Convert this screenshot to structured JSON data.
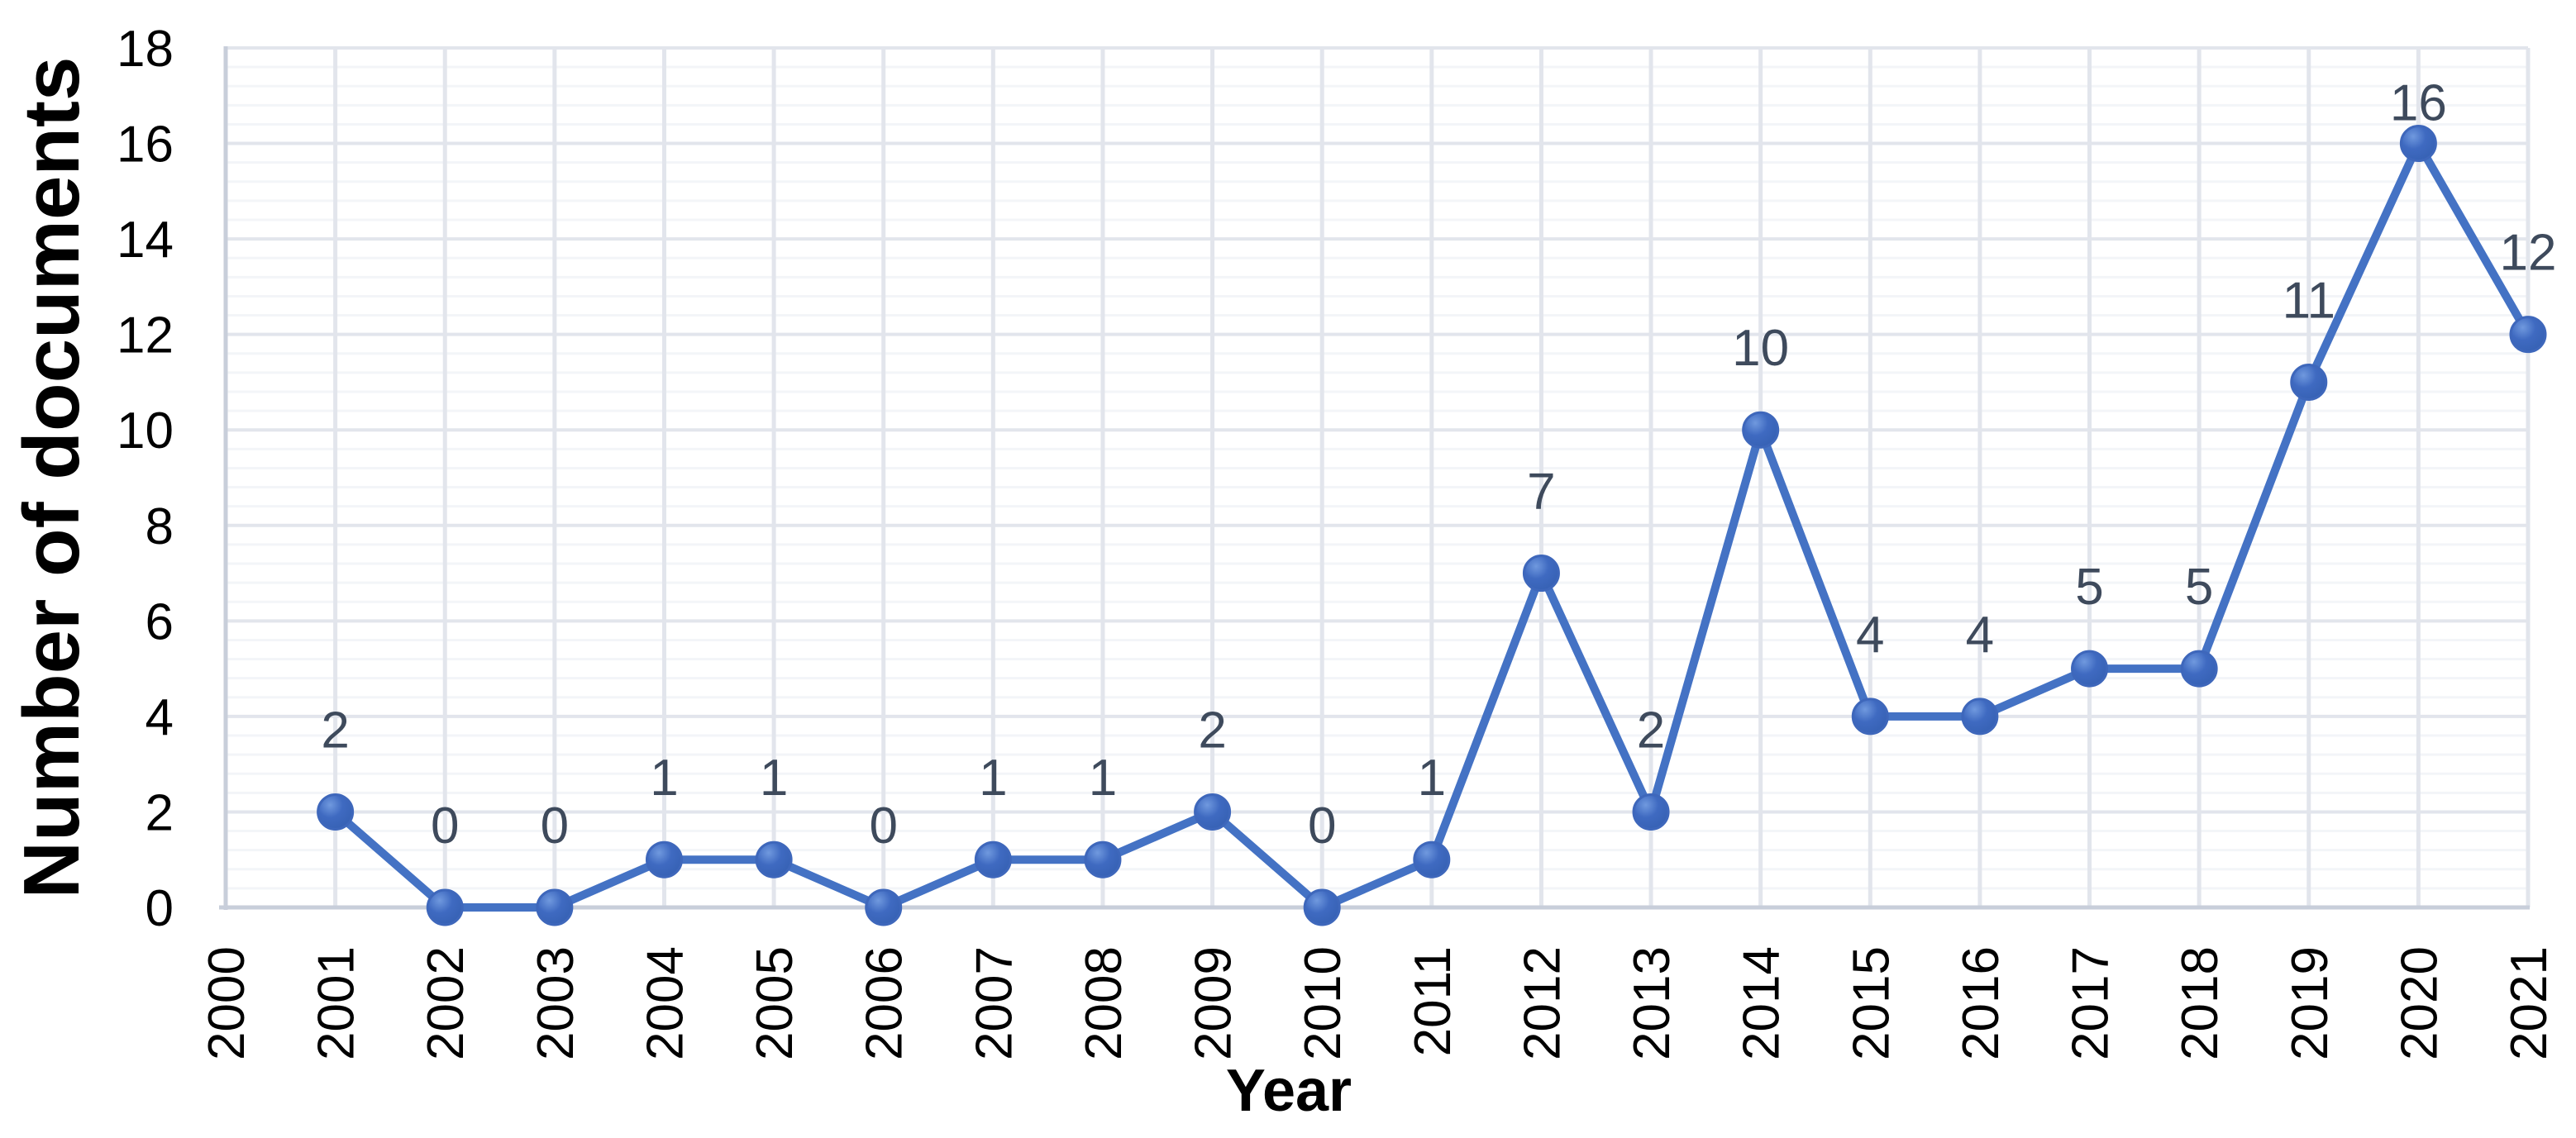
{
  "chart_data": {
    "type": "line",
    "title": "",
    "xlabel": "Year",
    "ylabel": "Number of documents",
    "categories": [
      "2000",
      "2001",
      "2002",
      "2003",
      "2004",
      "2005",
      "2006",
      "2007",
      "2008",
      "2009",
      "2010",
      "2011",
      "2012",
      "2013",
      "2014",
      "2015",
      "2016",
      "2017",
      "2018",
      "2019",
      "2020",
      "2021"
    ],
    "series": [
      {
        "name": "Number of documents",
        "x": [
          "2001",
          "2002",
          "2003",
          "2004",
          "2005",
          "2006",
          "2007",
          "2008",
          "2009",
          "2010",
          "2011",
          "2012",
          "2013",
          "2014",
          "2015",
          "2016",
          "2017",
          "2018",
          "2019",
          "2020",
          "2021"
        ],
        "values": [
          2,
          0,
          0,
          1,
          1,
          0,
          1,
          1,
          2,
          0,
          1,
          7,
          2,
          10,
          4,
          4,
          5,
          5,
          11,
          16,
          12
        ]
      }
    ],
    "data_labels_shown": true,
    "data_labels": [
      "2",
      "0",
      "0",
      "1",
      "1",
      "0",
      "1",
      "1",
      "2",
      "0",
      "1",
      "7",
      "2",
      "10",
      "4",
      "4",
      "5",
      "5",
      "11",
      "16",
      "12"
    ],
    "ylim": [
      0,
      18
    ],
    "y_tick_labels": [
      "0",
      "2",
      "4",
      "6",
      "8",
      "10",
      "12",
      "14",
      "16",
      "18"
    ],
    "y_major_step": 2,
    "y_minor_step": 0.4,
    "x_tick_rotation_degrees": -90,
    "grid": {
      "horizontal_major": true,
      "horizontal_minor": true,
      "vertical_major": true
    },
    "legend": "none",
    "colors": {
      "line": "#4472C4",
      "marker_fill": "#3F6AC1",
      "marker_highlight": "#7099DE",
      "marker_shade": "#3560B2",
      "marker_stroke": "#3E67BB",
      "data_label": "#3E4A5C",
      "tick_label": "#000000",
      "axis_title": "#000000",
      "grid_major": "#E2E5EC",
      "grid_minor": "#F3F5F8",
      "axis_line": "#C8CEDA",
      "background": "#FFFFFF"
    }
  }
}
